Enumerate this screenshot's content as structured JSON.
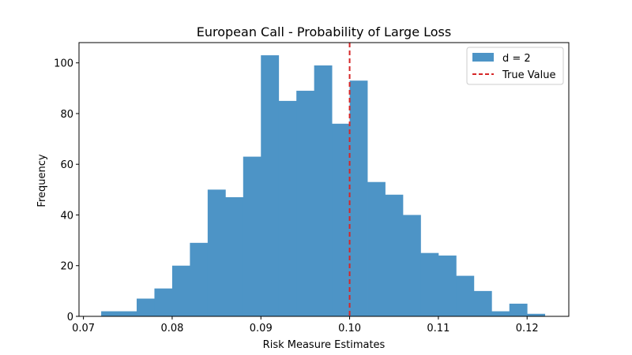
{
  "chart_data": {
    "type": "bar",
    "title": "European Call - Probability of Large Loss",
    "xlabel": "Risk Measure Estimates",
    "ylabel": "Frequency",
    "xlim": [
      0.0695,
      0.1247
    ],
    "ylim": [
      0,
      108
    ],
    "xticks": [
      {
        "value": 0.07,
        "label": "0.07"
      },
      {
        "value": 0.08,
        "label": "0.08"
      },
      {
        "value": 0.09,
        "label": "0.09"
      },
      {
        "value": 0.1,
        "label": "0.10"
      },
      {
        "value": 0.11,
        "label": "0.11"
      },
      {
        "value": 0.12,
        "label": "0.12"
      }
    ],
    "yticks": [
      {
        "value": 0,
        "label": "0"
      },
      {
        "value": 20,
        "label": "20"
      },
      {
        "value": 40,
        "label": "40"
      },
      {
        "value": 60,
        "label": "60"
      },
      {
        "value": 80,
        "label": "80"
      },
      {
        "value": 100,
        "label": "100"
      }
    ],
    "bin_edges": [
      0.072,
      0.074,
      0.076,
      0.078,
      0.08,
      0.082,
      0.084,
      0.086,
      0.088,
      0.09,
      0.092,
      0.094,
      0.096,
      0.098,
      0.1,
      0.102,
      0.104,
      0.106,
      0.108,
      0.11,
      0.112,
      0.114,
      0.116,
      0.118,
      0.12,
      0.122
    ],
    "series": [
      {
        "name": "d = 2",
        "color": "#4d94c6",
        "values": [
          2,
          2,
          7,
          11,
          20,
          29,
          50,
          47,
          63,
          103,
          85,
          89,
          99,
          76,
          93,
          53,
          48,
          40,
          25,
          24,
          16,
          10,
          2,
          5,
          1
        ]
      }
    ],
    "reference_lines": [
      {
        "name": "True Value",
        "orientation": "vertical",
        "x": 0.1,
        "color": "#d62728",
        "style": "dashed"
      }
    ],
    "grid": false,
    "legend_position": "top-right"
  }
}
